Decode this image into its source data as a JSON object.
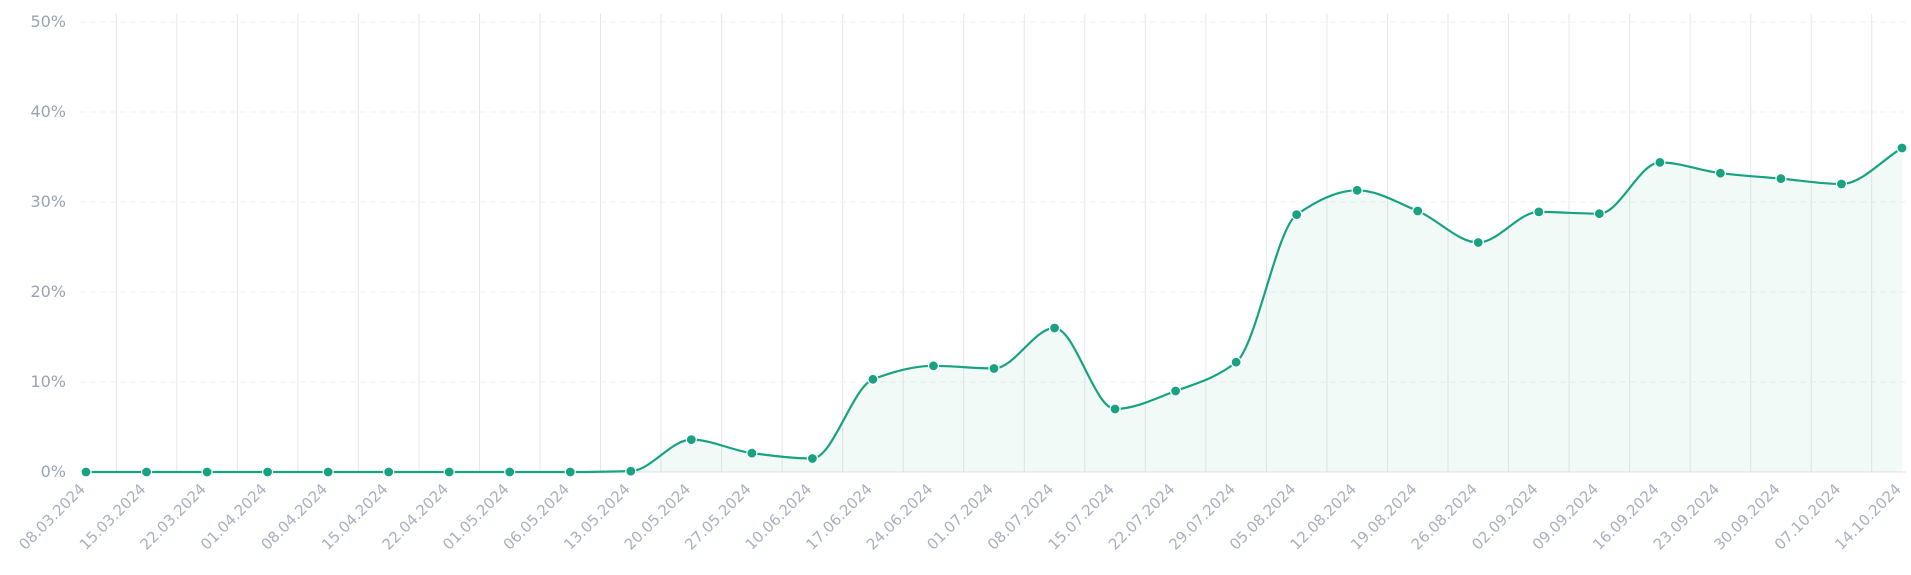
{
  "chart_data": {
    "type": "area",
    "title": "",
    "xlabel": "",
    "ylabel": "",
    "ylim": [
      0,
      50
    ],
    "grid": true,
    "y_ticks": [
      "0%",
      "10%",
      "20%",
      "30%",
      "40%",
      "50%"
    ],
    "x": [
      "08.03.2024",
      "15.03.2024",
      "22.03.2024",
      "01.04.2024",
      "08.04.2024",
      "15.04.2024",
      "22.04.2024",
      "01.05.2024",
      "06.05.2024",
      "13.05.2024",
      "20.05.2024",
      "27.05.2024",
      "10.06.2024",
      "17.06.2024",
      "24.06.2024",
      "01.07.2024",
      "08.07.2024",
      "15.07.2024",
      "22.07.2024",
      "29.07.2024",
      "05.08.2024",
      "12.08.2024",
      "19.08.2024",
      "26.08.2024",
      "02.09.2024",
      "09.09.2024",
      "16.09.2024",
      "23.09.2024",
      "30.09.2024",
      "07.10.2024",
      "14.10.2024"
    ],
    "series": [
      {
        "values": [
          0,
          0,
          0,
          0,
          0,
          0,
          0,
          0,
          0,
          0.1,
          3.6,
          2.1,
          1.5,
          10.3,
          11.8,
          11.5,
          16.0,
          7.0,
          9.0,
          12.2,
          28.6,
          31.3,
          29.0,
          25.5,
          28.9,
          28.7,
          34.4,
          33.2,
          32.6,
          32.0,
          36.0
        ],
        "color": "#17a382"
      }
    ]
  }
}
